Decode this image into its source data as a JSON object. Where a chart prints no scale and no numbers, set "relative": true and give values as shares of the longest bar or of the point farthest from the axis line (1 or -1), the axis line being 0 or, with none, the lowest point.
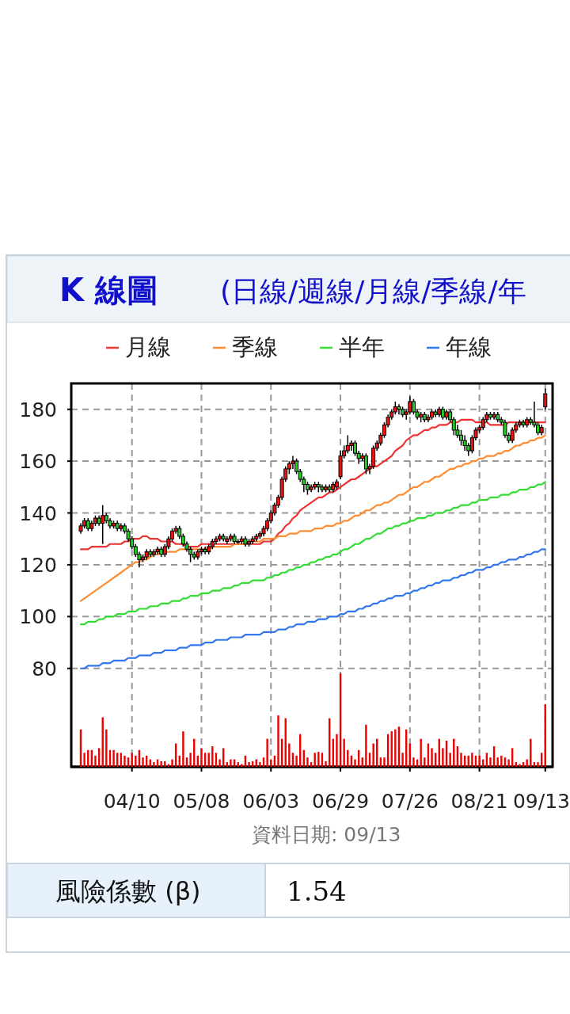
{
  "chart_data": [
    {
      "type": "candlestick",
      "title": "K 線圖",
      "subtitle": "(日線/週線/月線/季線/年",
      "categories": [
        null,
        null,
        null,
        null,
        null,
        null,
        null,
        null,
        null,
        null,
        null,
        null,
        null,
        null,
        "04/10",
        null,
        null,
        null,
        null,
        null,
        null,
        null,
        null,
        null,
        null,
        null,
        null,
        null,
        null,
        null,
        null,
        null,
        null,
        "05/08",
        null,
        null,
        null,
        null,
        null,
        null,
        null,
        null,
        null,
        null,
        null,
        null,
        null,
        null,
        null,
        null,
        null,
        null,
        "06/03",
        null,
        null,
        null,
        null,
        null,
        null,
        null,
        null,
        null,
        null,
        null,
        null,
        null,
        null,
        null,
        null,
        null,
        null,
        "06/29",
        null,
        null,
        null,
        null,
        null,
        null,
        null,
        null,
        null,
        null,
        null,
        null,
        null,
        null,
        null,
        null,
        null,
        null,
        "07/26",
        null,
        null,
        null,
        null,
        null,
        null,
        null,
        null,
        null,
        null,
        null,
        null,
        null,
        null,
        null,
        null,
        null,
        null,
        "08/21",
        null,
        null,
        null,
        null,
        null,
        null,
        null,
        null,
        null,
        null,
        null,
        null,
        null,
        null,
        null,
        null,
        null,
        "09/13"
      ],
      "ohlc": [
        [
          133,
          136,
          132,
          135
        ],
        [
          135,
          138,
          134,
          137
        ],
        [
          137,
          138,
          133,
          134
        ],
        [
          134,
          137,
          133,
          136
        ],
        [
          136,
          139,
          135,
          138
        ],
        [
          138,
          139,
          135,
          136
        ],
        [
          136,
          143,
          128,
          139
        ],
        [
          139,
          140,
          136,
          137
        ],
        [
          137,
          138,
          134,
          135
        ],
        [
          135,
          137,
          134,
          136
        ],
        [
          136,
          137,
          133,
          134
        ],
        [
          134,
          136,
          133,
          135
        ],
        [
          135,
          136,
          132,
          133
        ],
        [
          133,
          134,
          129,
          130
        ],
        [
          130,
          131,
          126,
          127
        ],
        [
          127,
          128,
          123,
          124
        ],
        [
          124,
          125,
          119,
          122
        ],
        [
          122,
          124,
          121,
          123
        ],
        [
          123,
          126,
          122,
          125
        ],
        [
          125,
          126,
          123,
          124
        ],
        [
          124,
          126,
          123,
          125
        ],
        [
          125,
          127,
          124,
          126
        ],
        [
          126,
          127,
          123,
          124
        ],
        [
          124,
          128,
          123,
          127
        ],
        [
          127,
          131,
          126,
          130
        ],
        [
          130,
          134,
          129,
          133
        ],
        [
          133,
          135,
          132,
          134
        ],
        [
          134,
          135,
          130,
          131
        ],
        [
          131,
          132,
          127,
          128
        ],
        [
          128,
          129,
          125,
          126
        ],
        [
          126,
          127,
          121,
          124
        ],
        [
          124,
          125,
          122,
          123
        ],
        [
          123,
          126,
          122,
          125
        ],
        [
          125,
          127,
          124,
          126
        ],
        [
          126,
          127,
          124,
          125
        ],
        [
          125,
          128,
          124,
          127
        ],
        [
          127,
          130,
          126,
          129
        ],
        [
          129,
          131,
          128,
          130
        ],
        [
          130,
          132,
          129,
          131
        ],
        [
          131,
          132,
          129,
          130
        ],
        [
          129,
          131,
          128,
          130
        ],
        [
          130,
          132,
          129,
          131
        ],
        [
          131,
          132,
          128,
          129
        ],
        [
          129,
          130,
          128,
          129
        ],
        [
          129,
          131,
          128,
          130
        ],
        [
          130,
          131,
          127,
          128
        ],
        [
          128,
          130,
          127,
          129
        ],
        [
          129,
          131,
          128,
          130
        ],
        [
          130,
          132,
          129,
          131
        ],
        [
          131,
          133,
          130,
          132
        ],
        [
          132,
          135,
          131,
          134
        ],
        [
          134,
          138,
          133,
          137
        ],
        [
          137,
          141,
          136,
          140
        ],
        [
          140,
          144,
          139,
          143
        ],
        [
          143,
          147,
          142,
          146
        ],
        [
          146,
          154,
          145,
          153
        ],
        [
          153,
          158,
          152,
          157
        ],
        [
          157,
          160,
          155,
          159
        ],
        [
          159,
          162,
          157,
          160
        ],
        [
          160,
          161,
          155,
          156
        ],
        [
          156,
          157,
          152,
          153
        ],
        [
          153,
          154,
          148,
          151
        ],
        [
          151,
          152,
          147,
          149
        ],
        [
          149,
          151,
          148,
          150
        ],
        [
          150,
          152,
          149,
          151
        ],
        [
          151,
          152,
          148,
          150
        ],
        [
          150,
          151,
          148,
          149
        ],
        [
          149,
          151,
          148,
          150
        ],
        [
          150,
          151,
          148,
          149
        ],
        [
          149,
          152,
          148,
          151
        ],
        [
          150,
          153,
          149,
          152
        ],
        [
          154,
          164,
          153,
          162
        ],
        [
          162,
          166,
          161,
          164
        ],
        [
          164,
          170,
          163,
          166
        ],
        [
          166,
          168,
          164,
          167
        ],
        [
          167,
          168,
          162,
          163
        ],
        [
          163,
          164,
          159,
          161
        ],
        [
          161,
          163,
          160,
          162
        ],
        [
          162,
          163,
          155,
          157
        ],
        [
          157,
          159,
          155,
          158
        ],
        [
          158,
          166,
          157,
          165
        ],
        [
          165,
          168,
          164,
          167
        ],
        [
          167,
          171,
          166,
          170
        ],
        [
          170,
          175,
          169,
          174
        ],
        [
          174,
          178,
          173,
          177
        ],
        [
          177,
          180,
          176,
          179
        ],
        [
          179,
          183,
          178,
          181
        ],
        [
          181,
          182,
          178,
          180
        ],
        [
          180,
          181,
          177,
          178
        ],
        [
          178,
          180,
          176,
          179
        ],
        [
          179,
          185,
          178,
          183
        ],
        [
          183,
          184,
          178,
          179
        ],
        [
          179,
          180,
          176,
          177
        ],
        [
          177,
          179,
          175,
          178
        ],
        [
          178,
          179,
          175,
          176
        ],
        [
          176,
          178,
          175,
          177
        ],
        [
          177,
          180,
          176,
          179
        ],
        [
          179,
          180,
          177,
          178
        ],
        [
          178,
          181,
          177,
          180
        ],
        [
          180,
          181,
          176,
          177
        ],
        [
          177,
          180,
          176,
          179
        ],
        [
          179,
          180,
          175,
          176
        ],
        [
          176,
          177,
          170,
          172
        ],
        [
          172,
          174,
          169,
          170
        ],
        [
          170,
          172,
          166,
          168
        ],
        [
          168,
          170,
          164,
          166
        ],
        [
          166,
          167,
          162,
          164
        ],
        [
          164,
          170,
          163,
          169
        ],
        [
          169,
          173,
          168,
          172
        ],
        [
          172,
          174,
          171,
          173
        ],
        [
          173,
          177,
          172,
          176
        ],
        [
          176,
          179,
          175,
          178
        ],
        [
          178,
          179,
          176,
          177
        ],
        [
          177,
          179,
          176,
          178
        ],
        [
          178,
          179,
          175,
          176
        ],
        [
          176,
          177,
          174,
          175
        ],
        [
          175,
          176,
          169,
          170
        ],
        [
          170,
          171,
          167,
          168
        ],
        [
          168,
          173,
          167,
          172
        ],
        [
          172,
          175,
          171,
          174
        ],
        [
          174,
          176,
          173,
          175
        ],
        [
          175,
          176,
          173,
          174
        ],
        [
          174,
          177,
          173,
          176
        ],
        [
          176,
          177,
          174,
          175
        ],
        [
          175,
          183,
          173,
          174
        ],
        [
          174,
          175,
          170,
          171
        ],
        [
          171,
          174,
          170,
          173
        ],
        [
          181,
          188,
          180,
          186
        ]
      ],
      "series": [
        {
          "name": "月線",
          "type": "line",
          "color": "#ee3333",
          "values": [
            126,
            126,
            126,
            127,
            127,
            127,
            127,
            127,
            128,
            128,
            128,
            128,
            129,
            129,
            130,
            130,
            130,
            131,
            131,
            130,
            130,
            130,
            129,
            129,
            129,
            129,
            128,
            128,
            128,
            127,
            127,
            127,
            127,
            128,
            128,
            128,
            128,
            128,
            128,
            128,
            128,
            128,
            128,
            128,
            128,
            128,
            128,
            128,
            128,
            128,
            129,
            129,
            129,
            130,
            132,
            133,
            135,
            136,
            138,
            139,
            141,
            142,
            143,
            144,
            145,
            146,
            146,
            147,
            148,
            148,
            149,
            150,
            151,
            152,
            153,
            153,
            154,
            155,
            156,
            157,
            158,
            158,
            159,
            160,
            161,
            162,
            164,
            165,
            166,
            168,
            169,
            170,
            170,
            171,
            172,
            172,
            173,
            173,
            174,
            174,
            174,
            175,
            175,
            175,
            176,
            176,
            176,
            176,
            175,
            175,
            175,
            175,
            174,
            174,
            174,
            174,
            174,
            175,
            175,
            175,
            175,
            175,
            175,
            175,
            175,
            175,
            175,
            175
          ]
        },
        {
          "name": "季線",
          "type": "line",
          "color": "#ff8c30",
          "values": [
            106,
            107,
            108,
            109,
            110,
            111,
            112,
            113,
            114,
            115,
            116,
            117,
            118,
            119,
            120,
            121,
            121,
            122,
            122,
            123,
            124,
            124,
            125,
            125,
            125,
            125,
            125,
            126,
            126,
            126,
            126,
            126,
            126,
            126,
            126,
            126,
            127,
            127,
            127,
            127,
            127,
            127,
            128,
            128,
            128,
            128,
            129,
            129,
            129,
            129,
            130,
            130,
            130,
            130,
            131,
            131,
            131,
            132,
            132,
            132,
            133,
            133,
            133,
            133,
            134,
            134,
            134,
            135,
            135,
            135,
            136,
            136,
            137,
            137,
            138,
            139,
            139,
            140,
            141,
            141,
            142,
            143,
            143,
            144,
            144,
            145,
            146,
            147,
            147,
            148,
            149,
            150,
            150,
            151,
            152,
            152,
            153,
            154,
            154,
            155,
            156,
            157,
            157,
            158,
            158,
            159,
            159,
            160,
            160,
            161,
            161,
            162,
            162,
            162,
            163,
            163,
            164,
            164,
            165,
            166,
            166,
            167,
            167,
            168,
            168,
            169,
            169,
            170
          ]
        },
        {
          "name": "半年",
          "type": "line",
          "color": "#33dd33",
          "values": [
            97,
            97,
            98,
            98,
            98,
            99,
            99,
            100,
            100,
            100,
            101,
            101,
            101,
            102,
            102,
            102,
            103,
            103,
            103,
            104,
            104,
            104,
            105,
            105,
            105,
            106,
            106,
            106,
            107,
            107,
            108,
            108,
            108,
            109,
            109,
            109,
            110,
            110,
            110,
            111,
            111,
            111,
            112,
            112,
            113,
            113,
            113,
            114,
            114,
            114,
            114,
            115,
            115,
            116,
            116,
            117,
            117,
            118,
            118,
            119,
            119,
            120,
            120,
            121,
            121,
            122,
            122,
            123,
            123,
            124,
            124,
            125,
            126,
            126,
            127,
            128,
            128,
            129,
            130,
            130,
            131,
            132,
            132,
            133,
            134,
            134,
            135,
            135,
            136,
            136,
            137,
            137,
            138,
            138,
            138,
            139,
            139,
            140,
            140,
            140,
            141,
            141,
            142,
            142,
            143,
            143,
            143,
            144,
            144,
            145,
            145,
            145,
            146,
            146,
            146,
            147,
            147,
            147,
            148,
            148,
            149,
            149,
            149,
            150,
            150,
            151,
            151,
            152
          ]
        },
        {
          "name": "年線",
          "type": "line",
          "color": "#3377ee",
          "values": [
            80,
            80,
            81,
            81,
            81,
            81,
            82,
            82,
            82,
            83,
            83,
            83,
            83,
            84,
            84,
            84,
            85,
            85,
            85,
            85,
            86,
            86,
            86,
            87,
            87,
            87,
            87,
            88,
            88,
            88,
            89,
            89,
            89,
            89,
            90,
            90,
            90,
            91,
            91,
            91,
            91,
            92,
            92,
            92,
            92,
            93,
            93,
            93,
            93,
            93,
            94,
            94,
            94,
            94,
            95,
            95,
            95,
            96,
            96,
            97,
            97,
            97,
            98,
            98,
            98,
            99,
            99,
            99,
            100,
            100,
            100,
            101,
            101,
            102,
            102,
            102,
            103,
            103,
            104,
            104,
            105,
            105,
            106,
            106,
            107,
            107,
            108,
            108,
            108,
            109,
            109,
            110,
            110,
            111,
            111,
            112,
            112,
            113,
            113,
            114,
            114,
            114,
            115,
            115,
            116,
            116,
            117,
            117,
            118,
            118,
            118,
            119,
            119,
            120,
            120,
            121,
            121,
            122,
            122,
            122,
            123,
            123,
            124,
            124,
            125,
            125,
            126,
            126
          ]
        }
      ],
      "ylim": [
        42,
        190
      ],
      "yticks": [
        80,
        100,
        120,
        140,
        160,
        180
      ],
      "grid": true,
      "legend": "top",
      "annotations": [
        "資料日期: 09/13",
        "風險係數 (β)",
        "1.54"
      ]
    },
    {
      "type": "bar",
      "relative": true,
      "color": "#ee0000",
      "categories": [
        null,
        null,
        null,
        null,
        null,
        null,
        null,
        null,
        null,
        null,
        null,
        null,
        null,
        null,
        null,
        null,
        null,
        null,
        null,
        null,
        null,
        null,
        null,
        null,
        null,
        null,
        null,
        null,
        null,
        null,
        null,
        null,
        null,
        null,
        null,
        null,
        null,
        null,
        null,
        null,
        null,
        null,
        null,
        null,
        null,
        null,
        null,
        null,
        null,
        null,
        null,
        null,
        null,
        null,
        null,
        null,
        null,
        null,
        null,
        null,
        null,
        null,
        null,
        null,
        null,
        null,
        null,
        null,
        null,
        null,
        null,
        null,
        null,
        null,
        null,
        null,
        null,
        null,
        null,
        null,
        null,
        null,
        null,
        null,
        null,
        null,
        null,
        null,
        null,
        null,
        null,
        null,
        null,
        null,
        null,
        null,
        null,
        null,
        null,
        null,
        null,
        null,
        null,
        null,
        null,
        null,
        null,
        null,
        null,
        null,
        null,
        null,
        null,
        null,
        null,
        null,
        null,
        null,
        null,
        null,
        null,
        null,
        null,
        null,
        null,
        null,
        null,
        null
      ],
      "values": [
        0.4,
        0.15,
        0.18,
        0.18,
        0.12,
        0.2,
        0.53,
        0.4,
        0.18,
        0.18,
        0.15,
        0.15,
        0.12,
        0.1,
        0.15,
        0.12,
        0.18,
        0.1,
        0.12,
        0.08,
        0.05,
        0.08,
        0.06,
        0.06,
        0.03,
        0.08,
        0.25,
        0.12,
        0.38,
        0.1,
        0.15,
        0.3,
        0.12,
        0.2,
        0.15,
        0.15,
        0.22,
        0.15,
        0.08,
        0.2,
        0.05,
        0.08,
        0.08,
        0.05,
        0.03,
        0.12,
        0.05,
        0.06,
        0.08,
        0.05,
        0.1,
        0.3,
        0.08,
        0.12,
        0.55,
        0.3,
        0.52,
        0.25,
        0.15,
        0.12,
        0.35,
        0.18,
        0.1,
        0.05,
        0.15,
        0.16,
        0.15,
        0.06,
        0.52,
        0.3,
        0.35,
        1.0,
        0.3,
        0.18,
        0.12,
        0.08,
        0.18,
        0.1,
        0.45,
        0.15,
        0.25,
        0.3,
        0.1,
        0.1,
        0.35,
        0.38,
        0.4,
        0.43,
        0.15,
        0.4,
        0.25,
        0.1,
        0.08,
        0.3,
        0.1,
        0.25,
        0.2,
        0.15,
        0.3,
        0.2,
        0.28,
        0.15,
        0.3,
        0.22,
        0.15,
        0.12,
        0.12,
        0.15,
        0.12,
        0.12,
        0.08,
        0.15,
        0.1,
        0.22,
        0.1,
        0.12,
        0.1,
        0.08,
        0.2,
        0.05,
        0.03,
        0.05,
        0.08,
        0.3,
        0.05,
        0.05,
        0.15,
        0.67
      ]
    }
  ]
}
